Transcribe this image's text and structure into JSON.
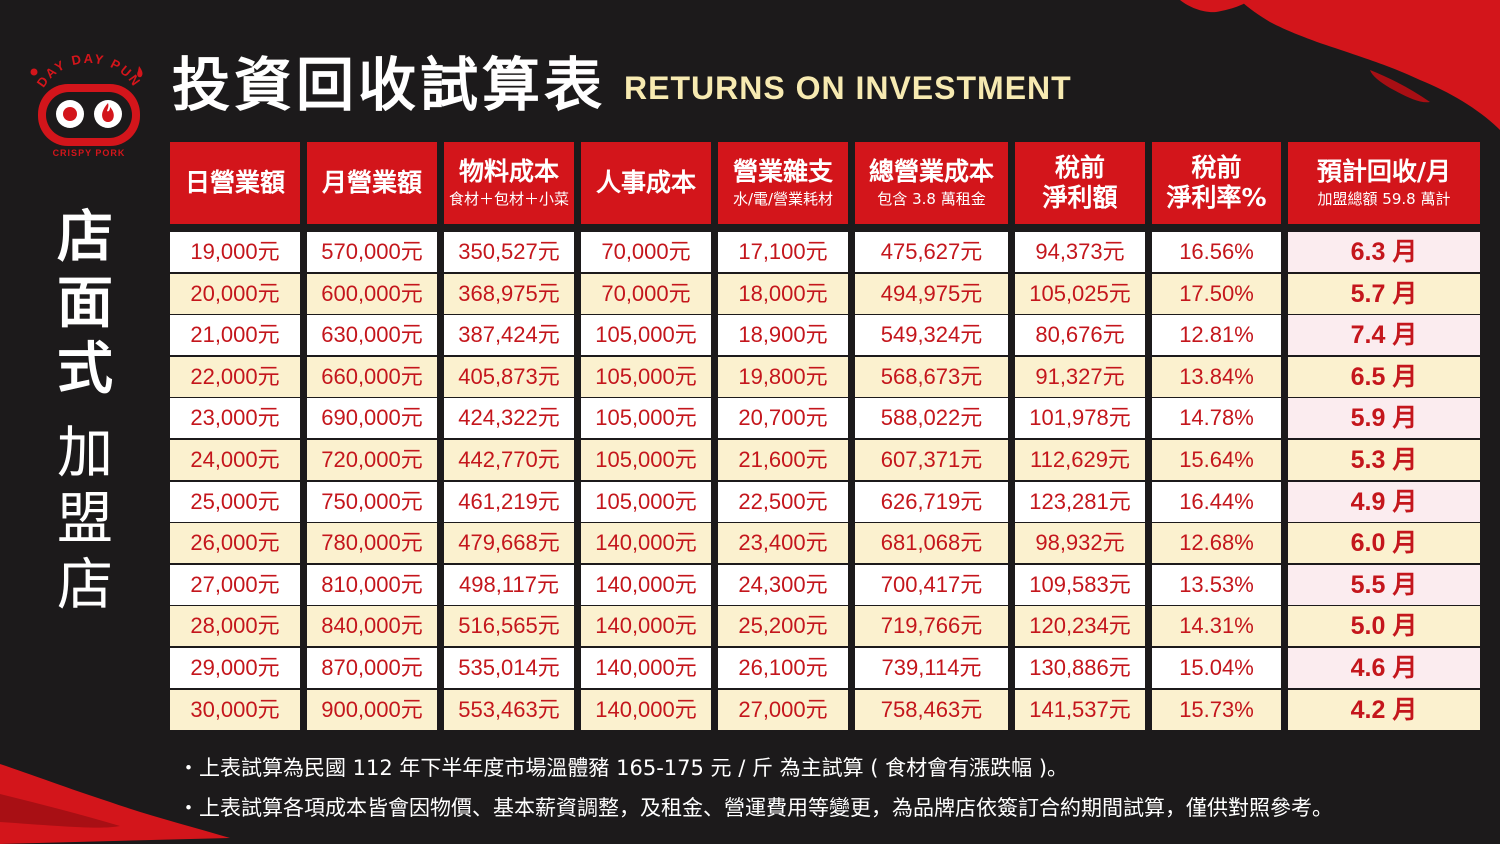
{
  "brand": {
    "logo_top_text": "DAY DAY PUN",
    "logo_bottom_text": "CRISPY PORK",
    "accent_color": "#d3151b",
    "logo_icons": [
      "pig-snout-icon",
      "flame-icon"
    ]
  },
  "title": {
    "zh": "投資回收試算表",
    "en": "RETURNS ON INVESTMENT"
  },
  "side_label": {
    "line1": [
      "店",
      "面",
      "式"
    ],
    "line2": [
      "加",
      "盟",
      "店"
    ]
  },
  "table": {
    "headers": [
      {
        "main": "日營業額",
        "sub": ""
      },
      {
        "main": "月營業額",
        "sub": ""
      },
      {
        "main": "物料成本",
        "sub": "食材＋包材＋小菜"
      },
      {
        "main": "人事成本",
        "sub": ""
      },
      {
        "main": "營業雜支",
        "sub": "水/電/營業耗材"
      },
      {
        "main": "總營業成本",
        "sub": "包含 3.8 萬租金"
      },
      {
        "main": "稅前\n淨利額",
        "sub": ""
      },
      {
        "main": "稅前\n淨利率%",
        "sub": ""
      },
      {
        "main": "預計回收/月",
        "sub": "加盟總額 59.8 萬計"
      }
    ],
    "rows": [
      [
        "19,000元",
        "570,000元",
        "350,527元",
        "70,000元",
        "17,100元",
        "475,627元",
        "94,373元",
        "16.56%",
        "6.3 月"
      ],
      [
        "20,000元",
        "600,000元",
        "368,975元",
        "70,000元",
        "18,000元",
        "494,975元",
        "105,025元",
        "17.50%",
        "5.7 月"
      ],
      [
        "21,000元",
        "630,000元",
        "387,424元",
        "105,000元",
        "18,900元",
        "549,324元",
        "80,676元",
        "12.81%",
        "7.4 月"
      ],
      [
        "22,000元",
        "660,000元",
        "405,873元",
        "105,000元",
        "19,800元",
        "568,673元",
        "91,327元",
        "13.84%",
        "6.5 月"
      ],
      [
        "23,000元",
        "690,000元",
        "424,322元",
        "105,000元",
        "20,700元",
        "588,022元",
        "101,978元",
        "14.78%",
        "5.9 月"
      ],
      [
        "24,000元",
        "720,000元",
        "442,770元",
        "105,000元",
        "21,600元",
        "607,371元",
        "112,629元",
        "15.64%",
        "5.3 月"
      ],
      [
        "25,000元",
        "750,000元",
        "461,219元",
        "105,000元",
        "22,500元",
        "626,719元",
        "123,281元",
        "16.44%",
        "4.9 月"
      ],
      [
        "26,000元",
        "780,000元",
        "479,668元",
        "140,000元",
        "23,400元",
        "681,068元",
        "98,932元",
        "12.68%",
        "6.0 月"
      ],
      [
        "27,000元",
        "810,000元",
        "498,117元",
        "140,000元",
        "24,300元",
        "700,417元",
        "109,583元",
        "13.53%",
        "5.5 月"
      ],
      [
        "28,000元",
        "840,000元",
        "516,565元",
        "140,000元",
        "25,200元",
        "719,766元",
        "120,234元",
        "14.31%",
        "5.0 月"
      ],
      [
        "29,000元",
        "870,000元",
        "535,014元",
        "140,000元",
        "26,100元",
        "739,114元",
        "130,886元",
        "15.04%",
        "4.6 月"
      ],
      [
        "30,000元",
        "900,000元",
        "553,463元",
        "140,000元",
        "27,000元",
        "758,463元",
        "141,537元",
        "15.73%",
        "4.2 月"
      ]
    ]
  },
  "notes": [
    "・上表試算為民國 112 年下半年度市場溫體豬 165-175 元 / 斤 為主試算 ( 食材會有漲跌幅 )。",
    "・上表試算各項成本皆會因物價、基本薪資調整，及租金、營運費用等變更，為品牌店依簽訂合約期間試算，僅供對照參考。"
  ]
}
